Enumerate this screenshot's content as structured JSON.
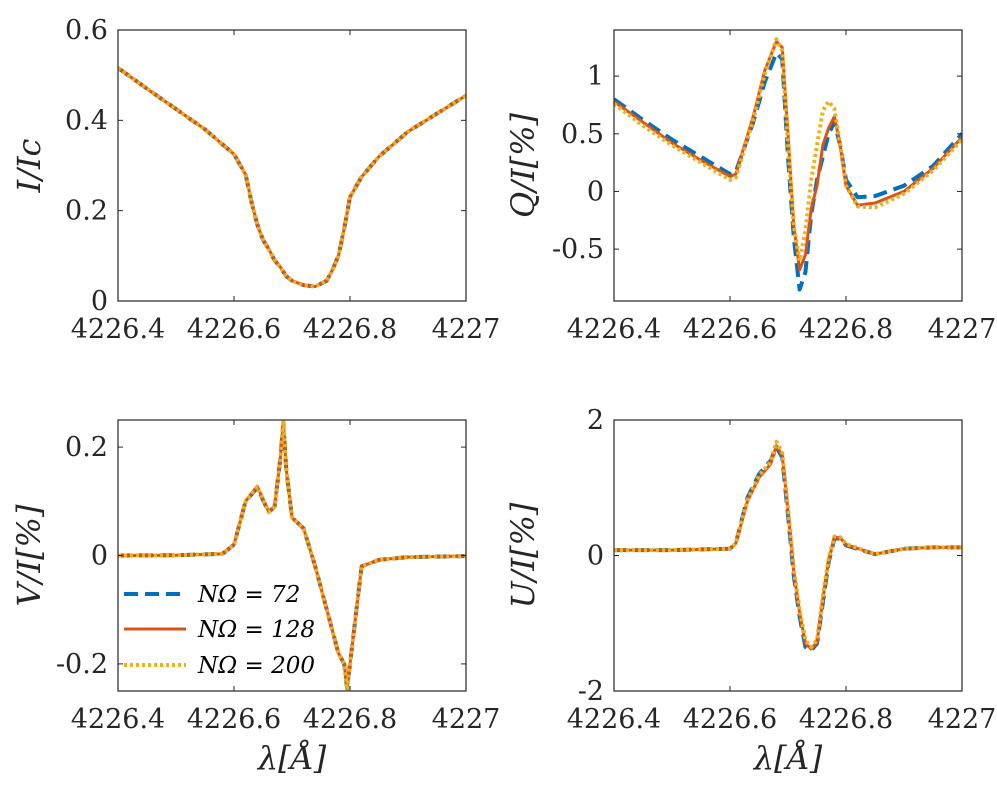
{
  "colors": {
    "dashed": "#0072BD",
    "solid": "#D95319",
    "dotted": "#EDB120"
  },
  "legend": {
    "location": "lower-left of V/I panel",
    "entries": [
      {
        "label": "NΩ = 72",
        "style": "dashed",
        "color": "#0072BD"
      },
      {
        "label": "NΩ = 128",
        "style": "solid",
        "color": "#D95319"
      },
      {
        "label": "NΩ = 200",
        "style": "dotted",
        "color": "#EDB120"
      }
    ]
  },
  "chart_data": [
    {
      "id": "I",
      "type": "line",
      "ylabel": "I/Ic",
      "xlabel": "",
      "xlim": [
        4226.4,
        4227
      ],
      "ylim": [
        0,
        0.6
      ],
      "xticks": [
        4226.4,
        4226.6,
        4226.8,
        4227
      ],
      "xtick_labels": [
        "4226.4",
        "4226.6",
        "4226.8",
        "4227"
      ],
      "yticks": [
        0,
        0.2,
        0.4,
        0.6
      ],
      "ytick_labels": [
        "0",
        "0.2",
        "0.4",
        "0.6"
      ],
      "series": [
        {
          "name": "NΩ = 72",
          "style": "dashed",
          "x": [
            4226.4,
            4226.45,
            4226.5,
            4226.55,
            4226.6,
            4226.62,
            4226.63,
            4226.64,
            4226.65,
            4226.66,
            4226.67,
            4226.68,
            4226.69,
            4226.7,
            4226.72,
            4226.74,
            4226.76,
            4226.77,
            4226.78,
            4226.79,
            4226.8,
            4226.82,
            4226.85,
            4226.9,
            4226.95,
            4227
          ],
          "y": [
            0.516,
            0.47,
            0.425,
            0.38,
            0.325,
            0.28,
            0.22,
            0.17,
            0.135,
            0.115,
            0.09,
            0.075,
            0.055,
            0.045,
            0.035,
            0.032,
            0.045,
            0.07,
            0.1,
            0.16,
            0.23,
            0.275,
            0.32,
            0.375,
            0.415,
            0.455
          ]
        },
        {
          "name": "NΩ = 128",
          "style": "solid",
          "x": [
            4226.4,
            4226.45,
            4226.5,
            4226.55,
            4226.6,
            4226.62,
            4226.63,
            4226.64,
            4226.65,
            4226.66,
            4226.67,
            4226.68,
            4226.69,
            4226.7,
            4226.72,
            4226.74,
            4226.76,
            4226.77,
            4226.78,
            4226.79,
            4226.8,
            4226.82,
            4226.85,
            4226.9,
            4226.95,
            4227
          ],
          "y": [
            0.516,
            0.47,
            0.425,
            0.38,
            0.325,
            0.28,
            0.22,
            0.17,
            0.135,
            0.115,
            0.09,
            0.075,
            0.055,
            0.045,
            0.035,
            0.032,
            0.045,
            0.07,
            0.1,
            0.16,
            0.23,
            0.275,
            0.32,
            0.375,
            0.415,
            0.455
          ]
        },
        {
          "name": "NΩ = 200",
          "style": "dotted",
          "x": [
            4226.4,
            4226.45,
            4226.5,
            4226.55,
            4226.6,
            4226.62,
            4226.63,
            4226.64,
            4226.65,
            4226.66,
            4226.67,
            4226.68,
            4226.69,
            4226.7,
            4226.72,
            4226.74,
            4226.76,
            4226.77,
            4226.78,
            4226.79,
            4226.8,
            4226.82,
            4226.85,
            4226.9,
            4226.95,
            4227
          ],
          "y": [
            0.516,
            0.47,
            0.425,
            0.38,
            0.325,
            0.28,
            0.22,
            0.17,
            0.135,
            0.115,
            0.09,
            0.075,
            0.055,
            0.045,
            0.035,
            0.032,
            0.045,
            0.07,
            0.1,
            0.16,
            0.23,
            0.275,
            0.32,
            0.375,
            0.415,
            0.455
          ]
        }
      ]
    },
    {
      "id": "Q",
      "type": "line",
      "ylabel": "Q/I[%]",
      "xlabel": "",
      "xlim": [
        4226.4,
        4227
      ],
      "ylim": [
        -0.95,
        1.4
      ],
      "xticks": [
        4226.4,
        4226.6,
        4226.8,
        4227
      ],
      "xtick_labels": [
        "4226.4",
        "4226.6",
        "4226.8",
        "4227"
      ],
      "yticks": [
        -0.5,
        0,
        0.5,
        1
      ],
      "ytick_labels": [
        "-0.5",
        "0",
        "0.5",
        "1"
      ],
      "series": [
        {
          "name": "NΩ = 72",
          "style": "dashed",
          "x": [
            4226.4,
            4226.45,
            4226.5,
            4226.55,
            4226.6,
            4226.61,
            4226.64,
            4226.66,
            4226.68,
            4226.69,
            4226.7,
            4226.71,
            4226.72,
            4226.73,
            4226.74,
            4226.75,
            4226.76,
            4226.77,
            4226.78,
            4226.79,
            4226.8,
            4226.82,
            4226.85,
            4226.9,
            4226.95,
            4227
          ],
          "y": [
            0.8,
            0.62,
            0.45,
            0.3,
            0.15,
            0.17,
            0.6,
            0.95,
            1.2,
            1.15,
            0.3,
            -0.4,
            -0.85,
            -0.7,
            -0.2,
            0.1,
            0.3,
            0.5,
            0.6,
            0.4,
            0.1,
            -0.05,
            -0.04,
            0.05,
            0.22,
            0.5
          ]
        },
        {
          "name": "NΩ = 128",
          "style": "solid",
          "x": [
            4226.4,
            4226.45,
            4226.5,
            4226.55,
            4226.6,
            4226.61,
            4226.64,
            4226.66,
            4226.68,
            4226.69,
            4226.7,
            4226.71,
            4226.72,
            4226.73,
            4226.74,
            4226.75,
            4226.76,
            4226.77,
            4226.78,
            4226.79,
            4226.8,
            4226.82,
            4226.85,
            4226.9,
            4226.95,
            4227
          ],
          "y": [
            0.78,
            0.6,
            0.42,
            0.27,
            0.13,
            0.15,
            0.65,
            1.05,
            1.3,
            1.25,
            0.5,
            -0.3,
            -0.68,
            -0.55,
            -0.15,
            0.05,
            0.4,
            0.55,
            0.65,
            0.4,
            0.05,
            -0.12,
            -0.1,
            0.0,
            0.2,
            0.47
          ]
        },
        {
          "name": "NΩ = 200",
          "style": "dotted",
          "x": [
            4226.4,
            4226.45,
            4226.5,
            4226.55,
            4226.6,
            4226.61,
            4226.64,
            4226.66,
            4226.68,
            4226.69,
            4226.7,
            4226.71,
            4226.72,
            4226.73,
            4226.74,
            4226.75,
            4226.76,
            4226.77,
            4226.78,
            4226.79,
            4226.8,
            4226.82,
            4226.85,
            4226.9,
            4226.95,
            4227
          ],
          "y": [
            0.76,
            0.57,
            0.4,
            0.25,
            0.1,
            0.12,
            0.62,
            1.02,
            1.32,
            1.22,
            0.4,
            -0.3,
            -0.6,
            -0.35,
            0.1,
            0.4,
            0.7,
            0.78,
            0.72,
            0.4,
            0.05,
            -0.13,
            -0.14,
            -0.02,
            0.18,
            0.45
          ]
        }
      ]
    },
    {
      "id": "V",
      "type": "line",
      "ylabel": "V/I[%]",
      "xlabel": "λ[Å]",
      "xlim": [
        4226.4,
        4227
      ],
      "ylim": [
        -0.25,
        0.25
      ],
      "xticks": [
        4226.4,
        4226.6,
        4226.8,
        4227
      ],
      "xtick_labels": [
        "4226.4",
        "4226.6",
        "4226.8",
        "4227"
      ],
      "yticks": [
        -0.2,
        0,
        0.2
      ],
      "ytick_labels": [
        "-0.2",
        "0",
        "0.2"
      ],
      "series": [
        {
          "name": "NΩ = 72",
          "style": "dashed",
          "x": [
            4226.4,
            4226.5,
            4226.58,
            4226.6,
            4226.62,
            4226.64,
            4226.66,
            4226.67,
            4226.68,
            4226.685,
            4226.69,
            4226.7,
            4226.72,
            4226.74,
            4226.76,
            4226.78,
            4226.79,
            4226.795,
            4226.8,
            4226.82,
            4226.85,
            4226.9,
            4227
          ],
          "y": [
            0,
            0.0005,
            0.003,
            0.02,
            0.1,
            0.125,
            0.08,
            0.09,
            0.18,
            0.245,
            0.16,
            0.07,
            0.05,
            -0.02,
            -0.1,
            -0.18,
            -0.2,
            -0.245,
            -0.2,
            -0.02,
            -0.008,
            -0.003,
            -0.001
          ]
        },
        {
          "name": "NΩ = 128",
          "style": "solid",
          "x": [
            4226.4,
            4226.5,
            4226.58,
            4226.6,
            4226.62,
            4226.64,
            4226.66,
            4226.67,
            4226.68,
            4226.685,
            4226.69,
            4226.7,
            4226.72,
            4226.74,
            4226.76,
            4226.78,
            4226.79,
            4226.795,
            4226.8,
            4226.82,
            4226.85,
            4226.9,
            4227
          ],
          "y": [
            0,
            0.0005,
            0.003,
            0.02,
            0.1,
            0.128,
            0.08,
            0.09,
            0.18,
            0.248,
            0.16,
            0.07,
            0.05,
            -0.02,
            -0.1,
            -0.18,
            -0.2,
            -0.245,
            -0.2,
            -0.02,
            -0.008,
            -0.003,
            -0.001
          ]
        },
        {
          "name": "NΩ = 200",
          "style": "dotted",
          "x": [
            4226.4,
            4226.5,
            4226.58,
            4226.6,
            4226.62,
            4226.64,
            4226.66,
            4226.67,
            4226.68,
            4226.685,
            4226.69,
            4226.7,
            4226.72,
            4226.74,
            4226.76,
            4226.78,
            4226.79,
            4226.795,
            4226.8,
            4226.82,
            4226.85,
            4226.9,
            4227
          ],
          "y": [
            0,
            0.0005,
            0.003,
            0.02,
            0.1,
            0.127,
            0.08,
            0.09,
            0.18,
            0.25,
            0.16,
            0.07,
            0.05,
            -0.02,
            -0.1,
            -0.18,
            -0.2,
            -0.248,
            -0.2,
            -0.02,
            -0.008,
            -0.003,
            -0.001
          ]
        }
      ]
    },
    {
      "id": "U",
      "type": "line",
      "ylabel": "U/I[%]",
      "xlabel": "λ[Å]",
      "xlim": [
        4226.4,
        4227
      ],
      "ylim": [
        -2,
        2
      ],
      "xticks": [
        4226.4,
        4226.6,
        4226.8,
        4227
      ],
      "xtick_labels": [
        "4226.4",
        "4226.6",
        "4226.8",
        "4227"
      ],
      "yticks": [
        -2,
        0,
        2
      ],
      "ytick_labels": [
        "-2",
        "0",
        "2"
      ],
      "series": [
        {
          "name": "NΩ = 72",
          "style": "dashed",
          "x": [
            4226.4,
            4226.5,
            4226.6,
            4226.61,
            4226.63,
            4226.65,
            4226.66,
            4226.67,
            4226.68,
            4226.69,
            4226.7,
            4226.71,
            4226.72,
            4226.73,
            4226.74,
            4226.75,
            4226.76,
            4226.77,
            4226.78,
            4226.79,
            4226.8,
            4226.85,
            4226.9,
            4226.95,
            4227
          ],
          "y": [
            0.08,
            0.08,
            0.1,
            0.18,
            0.85,
            1.2,
            1.3,
            1.4,
            1.6,
            1.45,
            0.6,
            -0.3,
            -0.9,
            -1.35,
            -1.4,
            -1.3,
            -0.7,
            -0.1,
            0.25,
            0.25,
            0.15,
            0.02,
            0.1,
            0.12,
            0.12
          ]
        },
        {
          "name": "NΩ = 128",
          "style": "solid",
          "x": [
            4226.4,
            4226.5,
            4226.6,
            4226.61,
            4226.63,
            4226.65,
            4226.66,
            4226.67,
            4226.68,
            4226.69,
            4226.7,
            4226.71,
            4226.72,
            4226.73,
            4226.74,
            4226.75,
            4226.76,
            4226.77,
            4226.78,
            4226.79,
            4226.8,
            4226.85,
            4226.9,
            4226.95,
            4227
          ],
          "y": [
            0.08,
            0.08,
            0.1,
            0.18,
            0.8,
            1.15,
            1.25,
            1.35,
            1.62,
            1.48,
            0.65,
            -0.25,
            -0.85,
            -1.3,
            -1.38,
            -1.28,
            -0.65,
            -0.08,
            0.27,
            0.26,
            0.16,
            0.02,
            0.1,
            0.12,
            0.12
          ]
        },
        {
          "name": "NΩ = 200",
          "style": "dotted",
          "x": [
            4226.4,
            4226.5,
            4226.6,
            4226.61,
            4226.63,
            4226.65,
            4226.66,
            4226.67,
            4226.68,
            4226.69,
            4226.7,
            4226.71,
            4226.72,
            4226.73,
            4226.74,
            4226.75,
            4226.76,
            4226.77,
            4226.78,
            4226.79,
            4226.8,
            4226.85,
            4226.9,
            4226.95,
            4227
          ],
          "y": [
            0.08,
            0.08,
            0.1,
            0.18,
            0.82,
            1.18,
            1.28,
            1.38,
            1.68,
            1.52,
            0.7,
            -0.2,
            -0.8,
            -1.25,
            -1.35,
            -1.25,
            -0.6,
            -0.05,
            0.28,
            0.27,
            0.17,
            0.02,
            0.1,
            0.12,
            0.12
          ]
        }
      ]
    }
  ]
}
